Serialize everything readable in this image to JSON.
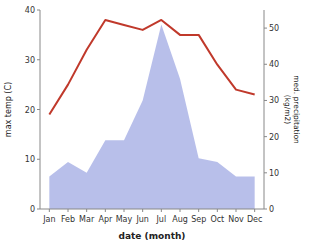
{
  "chart_data": {
    "type": "line",
    "xlabel": "date (month)",
    "ylabel": "max temp (C)",
    "y2label": "med. precipitation\n(kg/m2)",
    "categories": [
      "Jan",
      "Feb",
      "Mar",
      "Apr",
      "May",
      "Jun",
      "Jul",
      "Aug",
      "Sep",
      "Oct",
      "Nov",
      "Dec"
    ],
    "series": [
      {
        "type": "area",
        "axis": "y2",
        "color": "#b0b8e8",
        "values": [
          9,
          13,
          10,
          19,
          19,
          30,
          51,
          36,
          14,
          13,
          9,
          9
        ]
      },
      {
        "type": "line",
        "color": "#c0392b",
        "values": [
          19,
          25,
          32,
          38,
          37,
          36,
          38,
          35,
          35,
          29,
          24,
          23
        ]
      }
    ],
    "ylim": [
      0,
      40
    ],
    "yticks": [
      0,
      10,
      20,
      30,
      40
    ],
    "y2lim": [
      0,
      55
    ],
    "y2ticks": [
      0,
      10,
      20,
      30,
      40,
      50
    ],
    "grid": false
  }
}
